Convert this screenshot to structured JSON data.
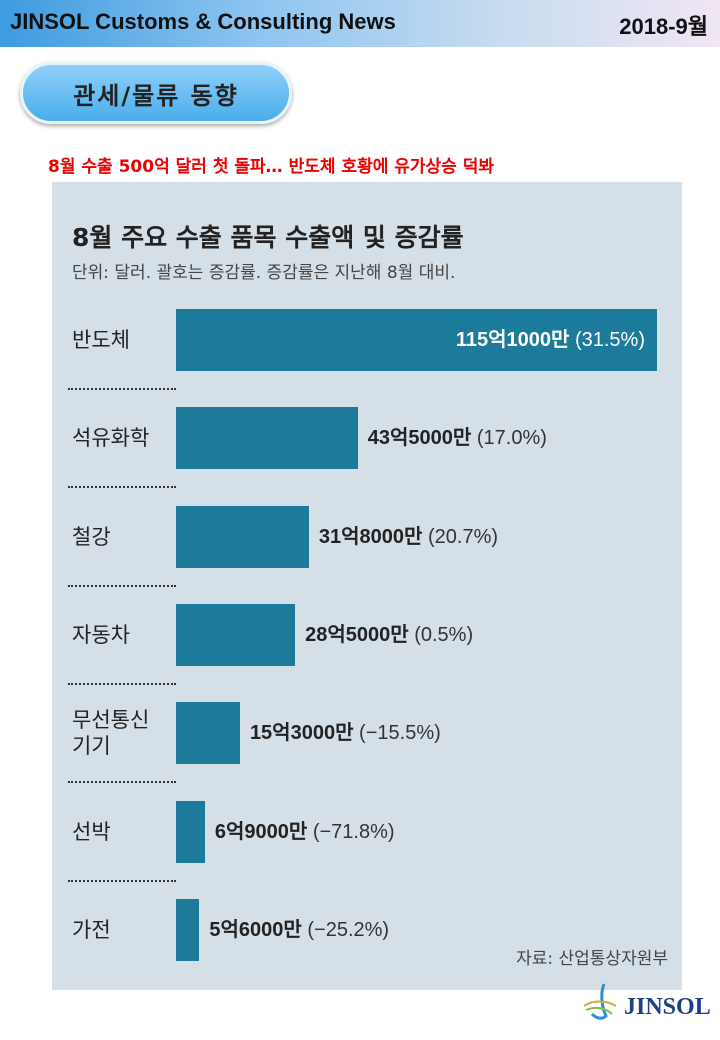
{
  "header": {
    "title": "JINSOL Customs & Consulting News",
    "date": "2018-9월"
  },
  "section_badge": "관세/물류 동향",
  "headline": "8월 수출 500억 달러 첫 돌파… 반도체 호황에 유가상승 덕봐",
  "chart_data": {
    "type": "bar",
    "orientation": "horizontal",
    "title": "8월 주요 수출 품목 수출액 및 증감률",
    "subtitle": "단위: 달러. 괄호는 증감률. 증감률은 지난해 8월 대비.",
    "source": "자료: 산업통상자원부",
    "categories": [
      "반도체",
      "석유화학",
      "철강",
      "자동차",
      "무선통신 기기",
      "선박",
      "가전"
    ],
    "values": [
      115.1,
      43.5,
      31.8,
      28.5,
      15.3,
      6.9,
      5.6
    ],
    "value_unit": "억 달러",
    "value_labels": [
      "115억1000만",
      "43억5000만",
      "31억8000만",
      "28억5000만",
      "15억3000만",
      "6억9000만",
      "5억6000만"
    ],
    "change_labels": [
      "(31.5%)",
      "(17.0%)",
      "(20.7%)",
      "(0.5%)",
      "(−15.5%)",
      "(−71.8%)",
      "(−25.2%)"
    ],
    "change_pct": [
      31.5,
      17.0,
      20.7,
      0.5,
      -15.5,
      -71.8,
      -25.2
    ],
    "bar_color": "#1c7b9b",
    "grid": false
  },
  "logo": {
    "text": "JINSOL"
  }
}
